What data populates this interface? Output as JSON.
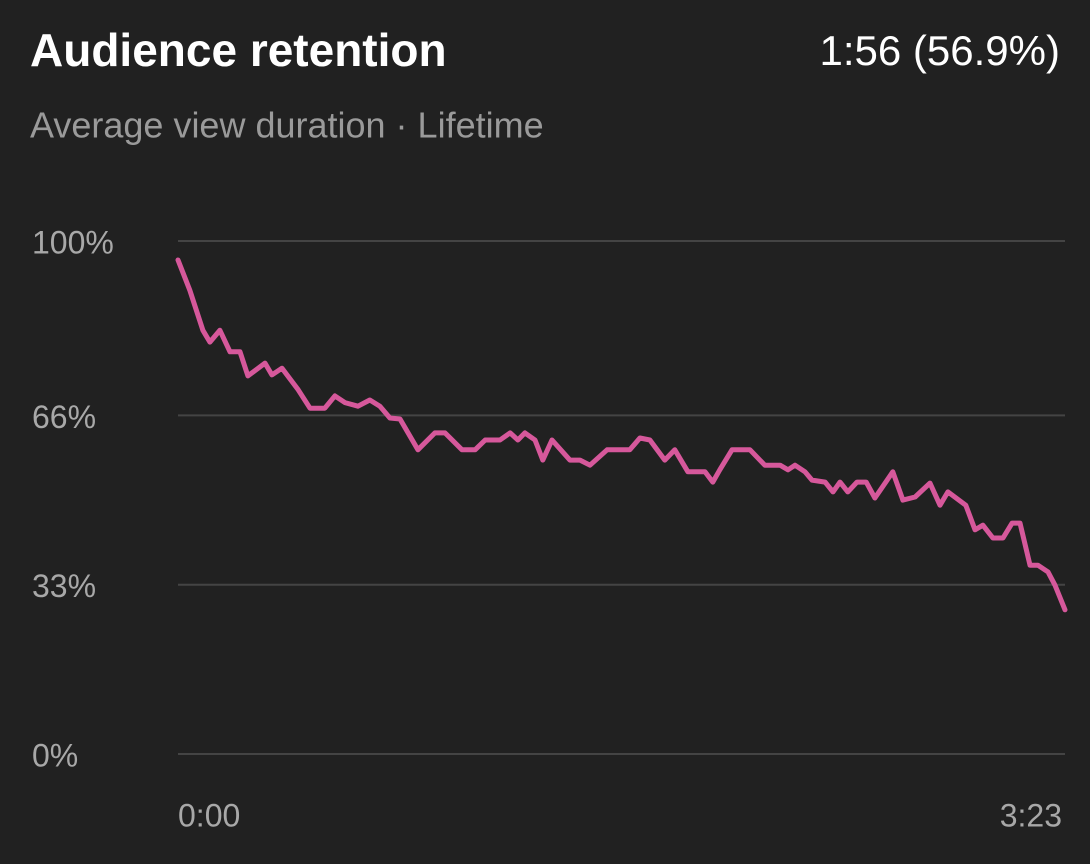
{
  "chart_data": {
    "type": "line",
    "title": "Audience retention",
    "annotation": "1:56 (56.9%)",
    "subtitle": "Average view duration · Lifetime",
    "x": [
      0,
      2.7,
      5.7,
      7.3,
      9.6,
      11.9,
      14.2,
      16,
      19.9,
      21.5,
      23.8,
      27.5,
      30.2,
      33.6,
      35.9,
      38.2,
      41.2,
      43.9,
      46.2,
      48.5,
      50.8,
      54.9,
      58.8,
      61.1,
      65,
      68,
      70.3,
      73.7,
      76,
      77.8,
      79.4,
      81.7,
      83.5,
      85.6,
      89.7,
      92,
      94.3,
      98.2,
      103.4,
      105.7,
      108,
      111.4,
      113.7,
      116.7,
      120.6,
      122.4,
      124,
      126.8,
      130.9,
      134.3,
      137.8,
      139.6,
      141.2,
      143.5,
      145.1,
      148.1,
      149.9,
      151.5,
      153.3,
      155.4,
      157.5,
      159.5,
      163.6,
      165.9,
      168.7,
      172.1,
      174.4,
      176.2,
      180.3,
      182.4,
      184.2,
      186.5,
      188.8,
      190.9,
      192.7,
      195,
      196.8,
      199.1,
      200.7,
      203
    ],
    "values": [
      96.3,
      90.4,
      82.6,
      80.3,
      82.6,
      78.4,
      78.4,
      73.7,
      76.2,
      73.9,
      75.2,
      71,
      67.4,
      67.4,
      69.8,
      68.5,
      67.8,
      69,
      67.8,
      65.5,
      65.3,
      59.3,
      62.6,
      62.6,
      59.3,
      59.3,
      61.2,
      61.2,
      62.6,
      61.2,
      62.6,
      61.2,
      57.3,
      61.2,
      57.3,
      57.3,
      56.3,
      59.3,
      59.3,
      61.6,
      61.2,
      57.3,
      59.3,
      55,
      55,
      53,
      55.4,
      59.3,
      59.3,
      56.3,
      56.3,
      55.4,
      56.3,
      55,
      53.4,
      53,
      51.1,
      53,
      51.1,
      53,
      53,
      49.9,
      55,
      49.5,
      50.1,
      52.8,
      48.5,
      51.1,
      48.5,
      43.7,
      44.6,
      42.1,
      42.1,
      45,
      45,
      36.8,
      36.8,
      35.5,
      32.9,
      28.1
    ],
    "color": "#d6589b",
    "xlim": [
      0,
      203
    ],
    "xticks": [
      {
        "value": 0,
        "label": "0:00"
      },
      {
        "value": 203,
        "label": "3:23"
      }
    ],
    "ylim": [
      0,
      100
    ],
    "yticks": [
      {
        "value": 0,
        "label": "0%"
      },
      {
        "value": 33,
        "label": "33%"
      },
      {
        "value": 66,
        "label": "66%"
      },
      {
        "value": 100,
        "label": "100%"
      }
    ],
    "grid": true
  }
}
